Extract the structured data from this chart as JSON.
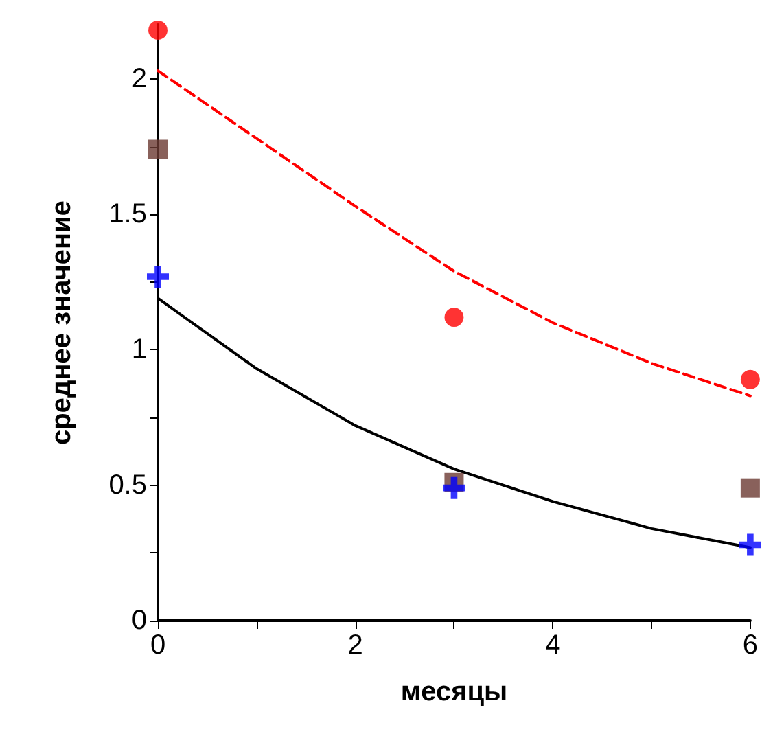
{
  "chart_data": {
    "type": "scatter",
    "xlabel": "месяцы",
    "ylabel": "среднее значение",
    "xlim": [
      0,
      6
    ],
    "ylim": [
      0,
      2.2
    ],
    "xticks": [
      0,
      {
        "value": 1,
        "label": null
      },
      2,
      {
        "value": 3,
        "label": null
      },
      4,
      {
        "value": 5,
        "label": null
      },
      6
    ],
    "yticks": [
      0,
      {
        "value": 0.25,
        "label": null
      },
      0.5,
      {
        "value": 0.75,
        "label": null
      },
      1,
      {
        "value": 1.25,
        "label": null
      },
      1.5,
      {
        "value": 1.75,
        "label": null
      },
      2
    ],
    "grid": false,
    "series": [
      {
        "marker": "circle",
        "color": "#ff0000",
        "x": [
          0,
          3,
          6
        ],
        "values": [
          2.18,
          1.12,
          0.89
        ]
      },
      {
        "marker": "square",
        "color": "#6b3a32",
        "x": [
          0,
          3,
          6
        ],
        "values": [
          1.74,
          0.51,
          0.49
        ]
      },
      {
        "marker": "cross",
        "color": "#0000ff",
        "x": [
          0,
          3,
          6
        ],
        "values": [
          1.27,
          0.49,
          0.28
        ]
      },
      {
        "type": "line",
        "marker": "none",
        "line_style": "dashed",
        "color": "#ff0000",
        "x": [
          0,
          1,
          2,
          3,
          4,
          5,
          6
        ],
        "values": [
          2.03,
          1.78,
          1.53,
          1.29,
          1.1,
          0.95,
          0.83
        ]
      },
      {
        "type": "line",
        "marker": "none",
        "line_style": "solid",
        "color": "#000000",
        "x": [
          0,
          1,
          2,
          3,
          4,
          5,
          6
        ],
        "values": [
          1.19,
          0.93,
          0.72,
          0.56,
          0.44,
          0.34,
          0.27
        ]
      }
    ]
  }
}
